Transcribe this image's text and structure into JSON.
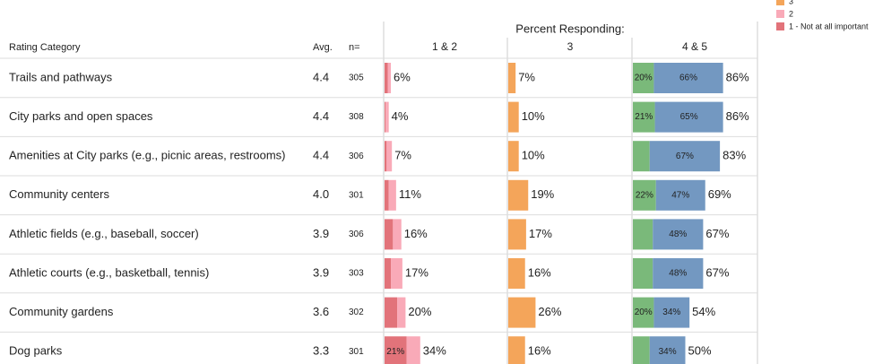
{
  "legend": [
    {
      "label": "3",
      "color": "#f4a55a"
    },
    {
      "label": "2",
      "color": "#f9aab8"
    },
    {
      "label": "1 - Not at all important",
      "color": "#e2737a"
    }
  ],
  "columns": {
    "category": "Rating Category",
    "avg": "Avg.",
    "n": "n=",
    "group": "Percent Responding:",
    "low": "1 & 2",
    "mid": "3",
    "high": "4 & 5"
  },
  "colors": {
    "r1": "#e2737a",
    "r2": "#f9aab8",
    "mid": "#f4a55a",
    "g4": "#7ab97a",
    "g5": "#7398c1"
  },
  "rows": [
    {
      "name": "Trails and pathways",
      "avg": "4.4",
      "n": 305,
      "r1": 3,
      "r2": 3,
      "low_label": "6%",
      "mid": 7,
      "mid_label": "7%",
      "g4": 20,
      "g4_label": "20%",
      "g5": 66,
      "g5_label": "66%",
      "high_label": "86%"
    },
    {
      "name": "City parks and open spaces",
      "avg": "4.4",
      "n": 308,
      "r1": 1,
      "r2": 3,
      "low_label": "4%",
      "mid": 10,
      "mid_label": "10%",
      "g4": 21,
      "g4_label": "21%",
      "g5": 65,
      "g5_label": "65%",
      "high_label": "86%"
    },
    {
      "name": "Amenities at City parks (e.g., picnic areas, restrooms)",
      "avg": "4.4",
      "n": 306,
      "r1": 2,
      "r2": 5,
      "low_label": "7%",
      "mid": 10,
      "mid_label": "10%",
      "g4": 16,
      "g5": 67,
      "g5_label": "67%",
      "high_label": "83%"
    },
    {
      "name": "Community centers",
      "avg": "4.0",
      "n": 301,
      "r1": 4,
      "r2": 7,
      "low_label": "11%",
      "mid": 19,
      "mid_label": "19%",
      "g4": 22,
      "g4_label": "22%",
      "g5": 47,
      "g5_label": "47%",
      "high_label": "69%"
    },
    {
      "name": "Athletic fields (e.g., baseball, soccer)",
      "avg": "3.9",
      "n": 306,
      "r1": 8,
      "r2": 8,
      "low_label": "16%",
      "mid": 17,
      "mid_label": "17%",
      "g4": 19,
      "g5": 48,
      "g5_label": "48%",
      "high_label": "67%"
    },
    {
      "name": "Athletic courts (e.g., basketball, tennis)",
      "avg": "3.9",
      "n": 303,
      "r1": 6,
      "r2": 11,
      "low_label": "17%",
      "mid": 16,
      "mid_label": "16%",
      "g4": 19,
      "g5": 48,
      "g5_label": "48%",
      "high_label": "67%"
    },
    {
      "name": "Community gardens",
      "avg": "3.6",
      "n": 302,
      "r1": 12,
      "r2": 8,
      "low_label": "20%",
      "mid": 26,
      "mid_label": "26%",
      "g4": 20,
      "g4_label": "20%",
      "g5": 34,
      "g5_label": "34%",
      "high_label": "54%"
    },
    {
      "name": "Dog parks",
      "avg": "3.3",
      "n": 301,
      "r1": 21,
      "r1_label": "21%",
      "r2": 13,
      "low_label": "34%",
      "mid": 16,
      "mid_label": "16%",
      "g4": 16,
      "g5": 34,
      "g5_label": "34%",
      "high_label": "50%"
    }
  ]
}
